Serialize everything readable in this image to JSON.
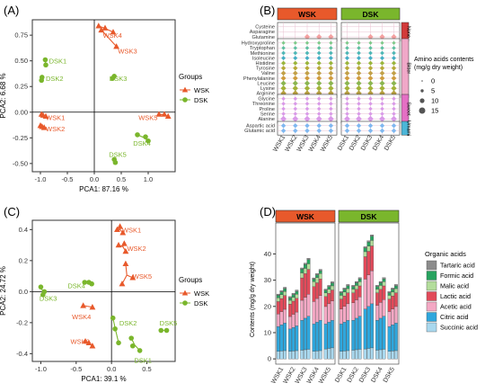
{
  "panels": {
    "A": "(A)",
    "B": "(B)",
    "C": "(C)",
    "D": "(D)"
  },
  "colors": {
    "wsk": "#e8592b",
    "dsk": "#7ab62c",
    "none": "#d23a3a",
    "bitter": "#f0a8c8",
    "sweet": "#e46fc4",
    "umami": "#4cb6d8"
  },
  "chart_data": [
    {
      "panel": "A",
      "type": "scatter",
      "xlabel": "PCA1:  87.16 %",
      "ylabel": "PCA2:  6.68 %",
      "xlim": [
        -1.15,
        1.5
      ],
      "ylim": [
        -0.58,
        0.9
      ],
      "xticks": [
        "-1.0",
        "-0.5",
        "0.0",
        "0.5",
        "1.0"
      ],
      "yticks": [
        "-0.50",
        "-0.25",
        "0.00",
        "0.25",
        "0.50",
        "0.75"
      ],
      "legend_title": "Groups",
      "legend_items": [
        "WSK",
        "DSK"
      ],
      "groups": [
        {
          "label": "WSK4",
          "group": "WSK",
          "points": [
            [
              0.08,
              0.84
            ],
            [
              0.2,
              0.82
            ],
            [
              0.35,
              0.78
            ]
          ],
          "lx": 0.16,
          "ly": 0.75
        },
        {
          "label": "WSK3",
          "group": "WSK",
          "points": [
            [
              0.13,
              0.8
            ],
            [
              0.41,
              0.64
            ]
          ],
          "lx": 0.44,
          "ly": 0.6
        },
        {
          "label": "WSK5",
          "group": "WSK",
          "points": [
            [
              1.2,
              -0.02
            ],
            [
              1.3,
              -0.02
            ],
            [
              1.37,
              -0.04
            ]
          ],
          "lx": 0.82,
          "ly": -0.05
        },
        {
          "label": "WSK1",
          "group": "WSK",
          "points": [
            [
              -0.98,
              -0.02
            ],
            [
              -0.95,
              -0.03
            ],
            [
              -0.9,
              -0.04
            ]
          ],
          "lx": -0.9,
          "ly": -0.05
        },
        {
          "label": "WSK2",
          "group": "WSK",
          "points": [
            [
              -1.0,
              -0.13
            ],
            [
              -0.97,
              -0.14
            ],
            [
              -0.93,
              -0.15
            ]
          ],
          "lx": -0.9,
          "ly": -0.16
        },
        {
          "label": "DSK1",
          "group": "DSK",
          "points": [
            [
              -0.9,
              0.46
            ],
            [
              -0.91,
              0.51
            ]
          ],
          "lx": -0.84,
          "ly": 0.5
        },
        {
          "label": "DSK2",
          "group": "DSK",
          "points": [
            [
              -0.98,
              0.31
            ],
            [
              -0.97,
              0.34
            ]
          ],
          "lx": -0.9,
          "ly": 0.33
        },
        {
          "label": "DSK3",
          "group": "DSK",
          "points": [
            [
              0.34,
              0.33
            ],
            [
              0.37,
              0.35
            ]
          ],
          "lx": 0.28,
          "ly": 0.33
        },
        {
          "label": "DSK4",
          "group": "DSK",
          "points": [
            [
              0.8,
              -0.22
            ],
            [
              0.95,
              -0.24
            ],
            [
              1.0,
              -0.28
            ]
          ],
          "lx": 0.72,
          "ly": -0.3
        },
        {
          "label": "DSK5",
          "group": "DSK",
          "points": [
            [
              0.37,
              -0.46
            ],
            [
              0.39,
              -0.49
            ]
          ],
          "lx": 0.27,
          "ly": -0.41
        }
      ]
    },
    {
      "panel": "B",
      "type": "heatmap",
      "facets": [
        "WSK",
        "DSK"
      ],
      "samples": [
        [
          "WSK1",
          "WSK2",
          "WSK3",
          "WSK4",
          "WSK5"
        ],
        [
          "DSK1",
          "DSK2",
          "DSK3",
          "DSK4",
          "DSK5"
        ]
      ],
      "row_groups": [
        {
          "name": "None",
          "rows": [
            "Cysteine",
            "Asparagine",
            "Glutamine"
          ]
        },
        {
          "name": "Bitter",
          "rows": [
            "Hydroxyproline",
            "Tryptophan",
            "Methionine",
            "Isoleucine",
            "Histidine",
            "Tyrosine",
            "Valine",
            "Phenylalanine",
            "Leucine",
            "Lysine",
            "Arginine"
          ]
        },
        {
          "name": "Sweet",
          "rows": [
            "Glycine",
            "Threonine",
            "Proline",
            "Serine",
            "Alanine"
          ]
        },
        {
          "name": "Umami",
          "rows": [
            "Aspartic acid",
            "Glutamic acid"
          ]
        }
      ],
      "legend_title": "Amino acids contents\n(mg/g dry weight)",
      "legend_sizes": [
        0,
        5,
        10,
        15
      ]
    },
    {
      "panel": "C",
      "type": "scatter",
      "xlabel": "PCA1:  39.1 %",
      "ylabel": "PCA2:  24.72 %",
      "xlim": [
        -1.12,
        0.9
      ],
      "ylim": [
        -0.45,
        0.46
      ],
      "xticks": [
        "-1.0",
        "-0.5",
        "0.0",
        "0.5"
      ],
      "yticks": [
        "-0.4",
        "-0.2",
        "0.0",
        "0.2",
        "0.4"
      ],
      "legend_title": "Groups",
      "legend_items": [
        "WSK",
        "DSK"
      ],
      "groups": [
        {
          "label": "WSK1",
          "group": "WSK",
          "points": [
            [
              0.08,
              0.4
            ],
            [
              0.12,
              0.42
            ],
            [
              0.16,
              0.38
            ]
          ],
          "lx": 0.15,
          "ly": 0.4
        },
        {
          "label": "WSK2",
          "group": "WSK",
          "points": [
            [
              0.1,
              0.3
            ],
            [
              0.18,
              0.31
            ],
            [
              0.2,
              0.26
            ]
          ],
          "lx": 0.22,
          "ly": 0.28
        },
        {
          "label": "WSK5",
          "group": "WSK",
          "points": [
            [
              0.15,
              0.05
            ],
            [
              0.2,
              0.18
            ],
            [
              0.3,
              0.09
            ]
          ],
          "lx": 0.3,
          "ly": 0.1
        },
        {
          "label": "WSK4",
          "group": "WSK",
          "points": [
            [
              -0.4,
              -0.09
            ],
            [
              -0.27,
              -0.1
            ]
          ],
          "lx": -0.56,
          "ly": -0.16
        },
        {
          "label": "WSK3",
          "group": "WSK",
          "points": [
            [
              -0.37,
              -0.32
            ],
            [
              -0.32,
              -0.33
            ],
            [
              -0.27,
              -0.35
            ]
          ],
          "lx": -0.58,
          "ly": -0.32
        },
        {
          "label": "DSK4",
          "group": "DSK",
          "points": [
            [
              -0.38,
              0.06
            ],
            [
              -0.32,
              0.06
            ],
            [
              -0.28,
              0.05
            ]
          ],
          "lx": -0.62,
          "ly": 0.04
        },
        {
          "label": "DSK3",
          "group": "DSK",
          "points": [
            [
              -1.0,
              0.03
            ],
            [
              -0.95,
              0.0
            ],
            [
              -0.97,
              -0.02
            ]
          ],
          "lx": -1.02,
          "ly": -0.04
        },
        {
          "label": "DSK2",
          "group": "DSK",
          "points": [
            [
              0.02,
              -0.17
            ],
            [
              0.05,
              -0.24
            ],
            [
              0.1,
              -0.33
            ]
          ],
          "lx": 0.11,
          "ly": -0.2
        },
        {
          "label": "DSK1",
          "group": "DSK",
          "points": [
            [
              0.28,
              -0.3
            ],
            [
              0.3,
              -0.35
            ],
            [
              0.4,
              -0.38
            ]
          ],
          "lx": 0.32,
          "ly": -0.44
        },
        {
          "label": "DSK5",
          "group": "DSK",
          "points": [
            [
              0.7,
              -0.25
            ],
            [
              0.78,
              -0.25
            ]
          ],
          "lx": 0.68,
          "ly": -0.2
        }
      ]
    },
    {
      "panel": "D",
      "type": "bar",
      "stacked": true,
      "ylabel": "Contents (mg/g dry weight)",
      "ylim": [
        -2,
        47
      ],
      "yticks": [
        "0",
        "10",
        "20",
        "30",
        "40"
      ],
      "facets": [
        "WSK",
        "DSK"
      ],
      "categories": [
        [
          "WSK1",
          "WSK2",
          "WSK3",
          "WSK4",
          "WSK5"
        ],
        [
          "DSK1",
          "DSK2",
          "DSK3",
          "DSK4",
          "DSK5"
        ]
      ],
      "legend_title": "Organic acids",
      "series": [
        {
          "name": "Succinic acid",
          "color": "#a9d8ee",
          "values": [
            [
              3,
              3,
              3.5,
              3,
              4
            ],
            [
              3,
              3.5,
              4,
              3.5,
              3
            ]
          ]
        },
        {
          "name": "Citric acid",
          "color": "#2fa7dd",
          "values": [
            [
              10,
              9,
              12,
              11,
              10
            ],
            [
              11,
              12,
              16,
              12,
              10
            ]
          ]
        },
        {
          "name": "Acetic acid",
          "color": "#f4a8c4",
          "values": [
            [
              5,
              5,
              8,
              9,
              7
            ],
            [
              6,
              7,
              12,
              6,
              6
            ]
          ]
        },
        {
          "name": "Lactic acid",
          "color": "#e24a5a",
          "values": [
            [
              5,
              5,
              9,
              6,
              4
            ],
            [
              4,
              4,
              9,
              5,
              5
            ]
          ]
        },
        {
          "name": "Malic acid",
          "color": "#b3dd9b",
          "values": [
            [
              1.5,
              1.5,
              2,
              2,
              1.5
            ],
            [
              1.5,
              1.5,
              2,
              1.5,
              1.5
            ]
          ]
        },
        {
          "name": "Formic acid",
          "color": "#27a35f",
          "values": [
            [
              1,
              1,
              1.5,
              1,
              1
            ],
            [
              1,
              1,
              1.5,
              1,
              1
            ]
          ]
        },
        {
          "name": "Tartaric acid",
          "color": "#8c8c8c",
          "values": [
            [
              0.5,
              0.5,
              0.5,
              0.5,
              0.5
            ],
            [
              0.5,
              0.5,
              0.5,
              0.5,
              0.5
            ]
          ]
        }
      ]
    }
  ]
}
